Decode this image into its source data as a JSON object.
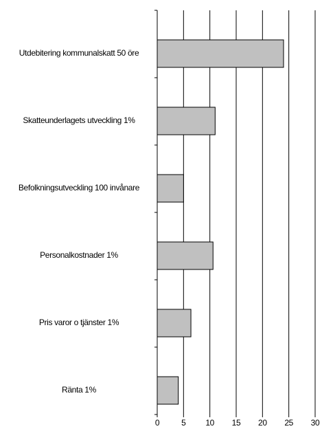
{
  "chart_data": {
    "type": "bar",
    "orientation": "horizontal",
    "categories": [
      "Utdebitering kommunalskatt 50 öre",
      "Skatteunderlagets utveckling 1%",
      "Befolkningsutveckling 100 invånare",
      "Personalkostnader 1%",
      "Pris varor o tjänster 1%",
      "Ränta 1%"
    ],
    "values": [
      24,
      11,
      5,
      10.6,
      6.4,
      4
    ],
    "color": "#c0c0c0",
    "xlim": [
      0,
      30
    ],
    "xticks": [
      0,
      5,
      10,
      15,
      20,
      25,
      30
    ],
    "grid": true
  }
}
